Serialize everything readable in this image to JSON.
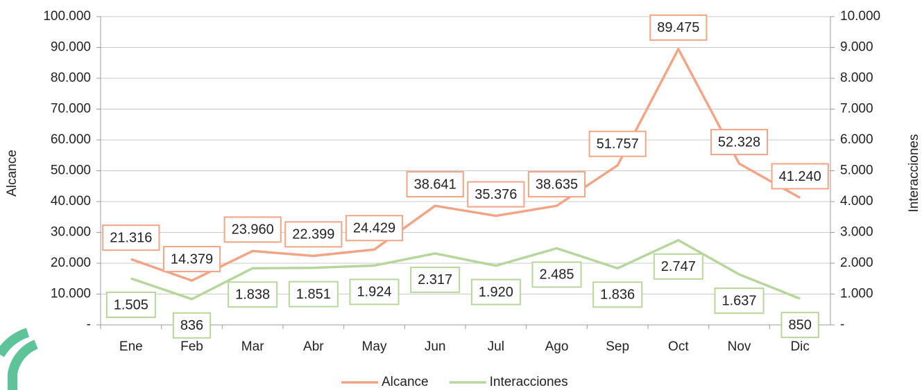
{
  "chart_data": {
    "type": "line",
    "y_label": "Alcance",
    "y2_label": "Interacciones",
    "categories": [
      "Ene",
      "Feb",
      "Mar",
      "Abr",
      "May",
      "Jun",
      "Jul",
      "Ago",
      "Sep",
      "Oct",
      "Nov",
      "Dic"
    ],
    "series": [
      {
        "name": "Alcance",
        "color": "#f2a487",
        "axis": "y",
        "values": [
          21316,
          14379,
          23960,
          22399,
          24429,
          38641,
          35376,
          38635,
          51757,
          89475,
          52328,
          41240
        ],
        "value_labels": [
          "21.316",
          "14.379",
          "23.960",
          "22.399",
          "24.429",
          "38.641",
          "35.376",
          "38.635",
          "51.757",
          "89.475",
          "52.328",
          "41.240"
        ]
      },
      {
        "name": "Interacciones",
        "color": "#b7d69c",
        "axis": "y2",
        "values": [
          1505,
          836,
          1838,
          1851,
          1924,
          2317,
          1920,
          2485,
          1836,
          2747,
          1637,
          850
        ],
        "value_labels": [
          "1.505",
          "836",
          "1.838",
          "1.851",
          "1.924",
          "2.317",
          "1.920",
          "2.485",
          "1.836",
          "2.747",
          "1.637",
          "850"
        ]
      }
    ],
    "ylim": [
      0,
      100000
    ],
    "yticks": [
      {
        "value": 0,
        "label": "-"
      },
      {
        "value": 10000,
        "label": "10.000"
      },
      {
        "value": 20000,
        "label": "20.000"
      },
      {
        "value": 30000,
        "label": "30.000"
      },
      {
        "value": 40000,
        "label": "40.000"
      },
      {
        "value": 50000,
        "label": "50.000"
      },
      {
        "value": 60000,
        "label": "60.000"
      },
      {
        "value": 70000,
        "label": "70.000"
      },
      {
        "value": 80000,
        "label": "80.000"
      },
      {
        "value": 90000,
        "label": "90.000"
      },
      {
        "value": 100000,
        "label": "100.000"
      }
    ],
    "y2lim": [
      0,
      10000
    ],
    "y2ticks": [
      {
        "value": 0,
        "label": "-"
      },
      {
        "value": 1000,
        "label": "1.000"
      },
      {
        "value": 2000,
        "label": "2.000"
      },
      {
        "value": 3000,
        "label": "3.000"
      },
      {
        "value": 4000,
        "label": "4.000"
      },
      {
        "value": 5000,
        "label": "5.000"
      },
      {
        "value": 6000,
        "label": "6.000"
      },
      {
        "value": 7000,
        "label": "7.000"
      },
      {
        "value": 8000,
        "label": "8.000"
      },
      {
        "value": 9000,
        "label": "9.000"
      },
      {
        "value": 10000,
        "label": "10.000"
      }
    ],
    "grid": true,
    "legend": "bottom"
  }
}
